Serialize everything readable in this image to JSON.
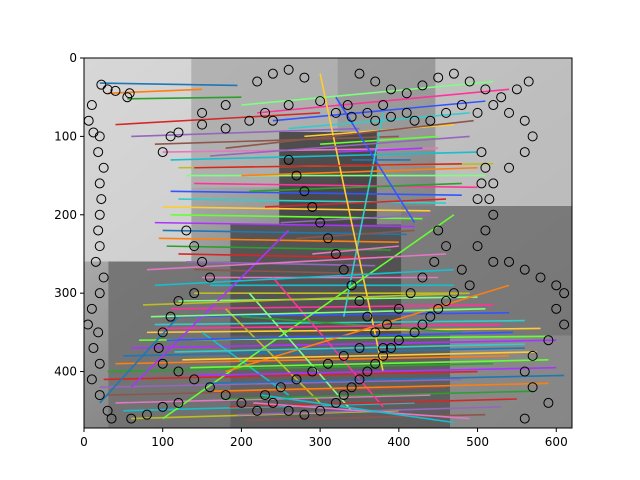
{
  "chart_data": {
    "type": "scatter",
    "subtype": "feature-match-lines-over-grayscale-photo",
    "title": "",
    "xlabel": "",
    "ylabel": "",
    "xlim": [
      0,
      620
    ],
    "ylim": [
      472,
      0
    ],
    "y_axis_inverted": true,
    "x_ticks": [
      0,
      100,
      200,
      300,
      400,
      500,
      600
    ],
    "y_ticks": [
      0,
      100,
      200,
      300,
      400
    ],
    "x_tick_labels": [
      "0",
      "100",
      "200",
      "300",
      "400",
      "500",
      "600"
    ],
    "y_tick_labels": [
      "0",
      "100",
      "200",
      "300",
      "400"
    ],
    "grid": false,
    "legend": "none",
    "background_image": "grayscale photo of a room interior (wall, window, furniture)",
    "marker": "hollow black circle",
    "colors": {
      "marker": "#000000",
      "axes": "#000000",
      "frame_bg": "#ffffff",
      "photo_light": "#bdbdbd",
      "photo_dark": "#3a3a3a",
      "line_palette": [
        "#1f77b4",
        "#ff7f0e",
        "#2ca02c",
        "#d62728",
        "#9467bd",
        "#8c564b",
        "#e377c2",
        "#17becf",
        "#bcbd22",
        "#7fff7f",
        "#ff3399",
        "#3355ff",
        "#33cccc",
        "#ffcc33",
        "#66ff33",
        "#aa33ff"
      ]
    },
    "circles": [
      [
        22,
        34
      ],
      [
        30,
        40
      ],
      [
        40,
        42
      ],
      [
        55,
        50
      ],
      [
        58,
        45
      ],
      [
        10,
        60
      ],
      [
        6,
        80
      ],
      [
        12,
        95
      ],
      [
        20,
        100
      ],
      [
        18,
        120
      ],
      [
        25,
        140
      ],
      [
        20,
        160
      ],
      [
        22,
        180
      ],
      [
        20,
        200
      ],
      [
        18,
        220
      ],
      [
        20,
        240
      ],
      [
        15,
        260
      ],
      [
        25,
        280
      ],
      [
        20,
        300
      ],
      [
        10,
        320
      ],
      [
        5,
        340
      ],
      [
        18,
        350
      ],
      [
        12,
        370
      ],
      [
        20,
        390
      ],
      [
        10,
        410
      ],
      [
        20,
        430
      ],
      [
        30,
        450
      ],
      [
        35,
        460
      ],
      [
        100,
        120
      ],
      [
        110,
        100
      ],
      [
        120,
        95
      ],
      [
        150,
        85
      ],
      [
        180,
        90
      ],
      [
        210,
        80
      ],
      [
        230,
        70
      ],
      [
        240,
        80
      ],
      [
        180,
        60
      ],
      [
        150,
        70
      ],
      [
        260,
        60
      ],
      [
        300,
        55
      ],
      [
        320,
        70
      ],
      [
        335,
        60
      ],
      [
        340,
        75
      ],
      [
        360,
        70
      ],
      [
        370,
        80
      ],
      [
        380,
        60
      ],
      [
        390,
        75
      ],
      [
        410,
        70
      ],
      [
        420,
        80
      ],
      [
        440,
        80
      ],
      [
        460,
        70
      ],
      [
        480,
        60
      ],
      [
        500,
        70
      ],
      [
        520,
        60
      ],
      [
        540,
        70
      ],
      [
        560,
        80
      ],
      [
        570,
        100
      ],
      [
        560,
        120
      ],
      [
        540,
        140
      ],
      [
        520,
        160
      ],
      [
        500,
        180
      ],
      [
        520,
        200
      ],
      [
        510,
        220
      ],
      [
        500,
        240
      ],
      [
        520,
        260
      ],
      [
        540,
        260
      ],
      [
        560,
        270
      ],
      [
        580,
        280
      ],
      [
        600,
        290
      ],
      [
        610,
        300
      ],
      [
        600,
        320
      ],
      [
        610,
        340
      ],
      [
        590,
        360
      ],
      [
        570,
        380
      ],
      [
        560,
        400
      ],
      [
        570,
        420
      ],
      [
        590,
        440
      ],
      [
        560,
        460
      ],
      [
        480,
        270
      ],
      [
        490,
        290
      ],
      [
        470,
        300
      ],
      [
        460,
        310
      ],
      [
        450,
        320
      ],
      [
        440,
        330
      ],
      [
        430,
        340
      ],
      [
        420,
        350
      ],
      [
        400,
        360
      ],
      [
        390,
        370
      ],
      [
        380,
        380
      ],
      [
        370,
        390
      ],
      [
        360,
        400
      ],
      [
        350,
        410
      ],
      [
        340,
        420
      ],
      [
        330,
        430
      ],
      [
        320,
        440
      ],
      [
        300,
        450
      ],
      [
        280,
        455
      ],
      [
        260,
        450
      ],
      [
        240,
        440
      ],
      [
        230,
        430
      ],
      [
        250,
        420
      ],
      [
        270,
        410
      ],
      [
        290,
        400
      ],
      [
        310,
        390
      ],
      [
        330,
        380
      ],
      [
        350,
        370
      ],
      [
        130,
        220
      ],
      [
        140,
        240
      ],
      [
        150,
        260
      ],
      [
        160,
        280
      ],
      [
        140,
        300
      ],
      [
        120,
        310
      ],
      [
        110,
        330
      ],
      [
        100,
        350
      ],
      [
        95,
        370
      ],
      [
        100,
        390
      ],
      [
        120,
        400
      ],
      [
        140,
        410
      ],
      [
        160,
        420
      ],
      [
        180,
        430
      ],
      [
        200,
        440
      ],
      [
        220,
        450
      ],
      [
        60,
        460
      ],
      [
        80,
        455
      ],
      [
        100,
        445
      ],
      [
        120,
        440
      ],
      [
        260,
        130
      ],
      [
        270,
        150
      ],
      [
        280,
        170
      ],
      [
        290,
        190
      ],
      [
        300,
        210
      ],
      [
        310,
        230
      ],
      [
        320,
        250
      ],
      [
        330,
        270
      ],
      [
        340,
        290
      ],
      [
        350,
        310
      ],
      [
        360,
        330
      ],
      [
        370,
        350
      ],
      [
        380,
        370
      ],
      [
        220,
        30
      ],
      [
        240,
        20
      ],
      [
        260,
        15
      ],
      [
        280,
        25
      ],
      [
        350,
        20
      ],
      [
        370,
        30
      ],
      [
        390,
        40
      ],
      [
        410,
        45
      ],
      [
        430,
        35
      ],
      [
        450,
        25
      ],
      [
        470,
        20
      ],
      [
        490,
        30
      ],
      [
        510,
        40
      ],
      [
        530,
        50
      ],
      [
        550,
        40
      ],
      [
        565,
        30
      ],
      [
        505,
        120
      ],
      [
        510,
        140
      ],
      [
        505,
        160
      ],
      [
        515,
        180
      ],
      [
        450,
        220
      ],
      [
        460,
        240
      ],
      [
        445,
        260
      ],
      [
        430,
        280
      ],
      [
        415,
        300
      ],
      [
        400,
        320
      ],
      [
        385,
        340
      ]
    ],
    "match_lines": [
      [
        20,
        32,
        195,
        35
      ],
      [
        30,
        45,
        150,
        40
      ],
      [
        55,
        52,
        200,
        50
      ],
      [
        40,
        85,
        300,
        70
      ],
      [
        60,
        100,
        350,
        90
      ],
      [
        90,
        110,
        400,
        100
      ],
      [
        100,
        120,
        450,
        115
      ],
      [
        110,
        130,
        500,
        120
      ],
      [
        120,
        140,
        520,
        135
      ],
      [
        130,
        150,
        510,
        150
      ],
      [
        140,
        160,
        500,
        165
      ],
      [
        110,
        170,
        480,
        175
      ],
      [
        120,
        180,
        460,
        185
      ],
      [
        100,
        190,
        440,
        195
      ],
      [
        110,
        200,
        430,
        205
      ],
      [
        90,
        210,
        420,
        215
      ],
      [
        100,
        220,
        410,
        225
      ],
      [
        95,
        230,
        400,
        235
      ],
      [
        105,
        240,
        390,
        245
      ],
      [
        120,
        250,
        380,
        255
      ],
      [
        130,
        260,
        370,
        265
      ],
      [
        140,
        270,
        360,
        275
      ],
      [
        150,
        280,
        450,
        280
      ],
      [
        160,
        290,
        470,
        290
      ],
      [
        140,
        300,
        480,
        300
      ],
      [
        120,
        310,
        500,
        305
      ],
      [
        110,
        320,
        520,
        315
      ],
      [
        100,
        330,
        540,
        325
      ],
      [
        90,
        340,
        560,
        335
      ],
      [
        80,
        350,
        580,
        345
      ],
      [
        70,
        360,
        590,
        355
      ],
      [
        60,
        370,
        600,
        360
      ],
      [
        50,
        380,
        560,
        370
      ],
      [
        40,
        390,
        540,
        380
      ],
      [
        30,
        400,
        520,
        390
      ],
      [
        25,
        410,
        500,
        400
      ],
      [
        20,
        420,
        480,
        410
      ],
      [
        30,
        430,
        460,
        420
      ],
      [
        40,
        440,
        440,
        430
      ],
      [
        50,
        450,
        420,
        440
      ],
      [
        60,
        460,
        400,
        450
      ],
      [
        200,
        60,
        520,
        30
      ],
      [
        220,
        70,
        540,
        40
      ],
      [
        240,
        80,
        510,
        55
      ],
      [
        260,
        90,
        490,
        70
      ],
      [
        280,
        100,
        470,
        85
      ],
      [
        300,
        110,
        450,
        100
      ],
      [
        320,
        120,
        430,
        115
      ],
      [
        340,
        130,
        415,
        130
      ],
      [
        200,
        150,
        500,
        140
      ],
      [
        210,
        170,
        480,
        160
      ],
      [
        230,
        190,
        460,
        180
      ],
      [
        250,
        210,
        440,
        200
      ],
      [
        270,
        230,
        420,
        220
      ],
      [
        290,
        250,
        400,
        240
      ],
      [
        150,
        350,
        260,
        430
      ],
      [
        180,
        320,
        300,
        440
      ],
      [
        210,
        300,
        340,
        450
      ],
      [
        240,
        280,
        380,
        445
      ],
      [
        320,
        50,
        420,
        210
      ],
      [
        380,
        70,
        330,
        330
      ],
      [
        300,
        20,
        380,
        400
      ],
      [
        100,
        460,
        470,
        200
      ],
      [
        60,
        420,
        260,
        220
      ],
      [
        20,
        440,
        120,
        330
      ],
      [
        180,
        400,
        540,
        290
      ],
      [
        200,
        330,
        480,
        350
      ],
      [
        140,
        140,
        480,
        135
      ],
      [
        160,
        125,
        490,
        100
      ],
      [
        180,
        115,
        495,
        80
      ],
      [
        80,
        270,
        460,
        250
      ],
      [
        90,
        290,
        470,
        270
      ],
      [
        75,
        315,
        490,
        300
      ],
      [
        85,
        330,
        510,
        320
      ],
      [
        95,
        345,
        530,
        340
      ],
      [
        105,
        360,
        545,
        350
      ],
      [
        115,
        375,
        560,
        365
      ],
      [
        125,
        385,
        575,
        375
      ],
      [
        135,
        395,
        590,
        385
      ],
      [
        145,
        405,
        600,
        395
      ],
      [
        155,
        415,
        610,
        405
      ],
      [
        165,
        425,
        590,
        415
      ],
      [
        175,
        435,
        570,
        425
      ],
      [
        185,
        445,
        550,
        435
      ],
      [
        195,
        455,
        530,
        445
      ],
      [
        205,
        462,
        510,
        455
      ],
      [
        215,
        440,
        490,
        460
      ],
      [
        225,
        430,
        470,
        465
      ]
    ]
  }
}
